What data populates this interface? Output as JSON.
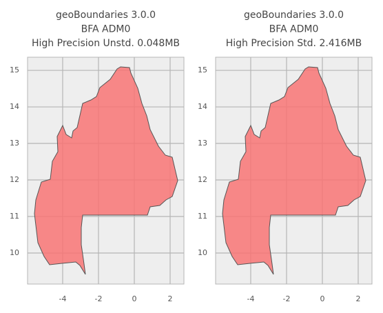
{
  "chart_data": [
    {
      "type": "map",
      "title": [
        "geoBoundaries 3.0.0",
        "BFA ADM0",
        "High Precision Unstd. 0.048MB"
      ],
      "xlim": [
        -5.96,
        2.77
      ],
      "ylim": [
        9.15,
        15.36
      ],
      "xticks": [
        -4,
        -2,
        0,
        2
      ],
      "yticks": [
        10,
        11,
        12,
        13,
        14,
        15
      ],
      "grid": true,
      "color": "#f87474"
    },
    {
      "type": "map",
      "title": [
        "geoBoundaries 3.0.0",
        "BFA ADM0",
        "High Precision Std. 2.416MB"
      ],
      "xlim": [
        -5.96,
        2.77
      ],
      "ylim": [
        9.15,
        15.36
      ],
      "xticks": [
        -4,
        -2,
        0,
        2
      ],
      "yticks": [
        10,
        11,
        12,
        13,
        14,
        15
      ],
      "grid": true,
      "color": "#f87474"
    }
  ]
}
